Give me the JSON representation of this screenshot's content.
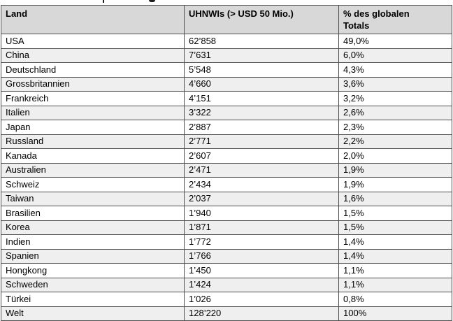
{
  "page": {
    "background": "#ffffff",
    "note": "table of UHNWIs per country, caption line above table cropped off at top edge"
  },
  "colors": {
    "header_bg": "#d8d8d8",
    "stripe_bg": "#efefef",
    "border": "#4f4f4f",
    "text": "#000000"
  },
  "table": {
    "header": {
      "col_land": "Land",
      "col_uhnwis": "UHNWIs (> USD 50 Mio.)",
      "col_pct": "% des globalen Totals"
    },
    "rows": [
      [
        "USA",
        "62’858",
        "49,0%"
      ],
      [
        "China",
        "7’631",
        "6,0%"
      ],
      [
        "Deutschland",
        "5’548",
        "4,3%"
      ],
      [
        "Grossbritannien",
        "4’660",
        "3,6%"
      ],
      [
        "Frankreich",
        "4’151",
        "3,2%"
      ],
      [
        "Italien",
        "3’322",
        "2,6%"
      ],
      [
        "Japan",
        "2’887",
        "2,3%"
      ],
      [
        "Russland",
        "2’771",
        "2,2%"
      ],
      [
        "Kanada",
        "2’607",
        "2,0%"
      ],
      [
        "Australien",
        "2’471",
        "1,9%"
      ],
      [
        "Schweiz",
        "2’434",
        "1,9%"
      ],
      [
        "Taiwan",
        "2’037",
        "1,6%"
      ],
      [
        "Brasilien",
        "1’940",
        "1,5%"
      ],
      [
        "Korea",
        "1’871",
        "1,5%"
      ],
      [
        "Indien",
        "1’772",
        "1,4%"
      ],
      [
        "Spanien",
        "1’766",
        "1,4%"
      ],
      [
        "Hongkong",
        "1’450",
        "1,1%"
      ],
      [
        "Schweden",
        "1’424",
        "1,1%"
      ],
      [
        "Türkei",
        "1’026",
        "0,8%"
      ],
      [
        "Welt",
        "128’220",
        "100%"
      ]
    ]
  }
}
